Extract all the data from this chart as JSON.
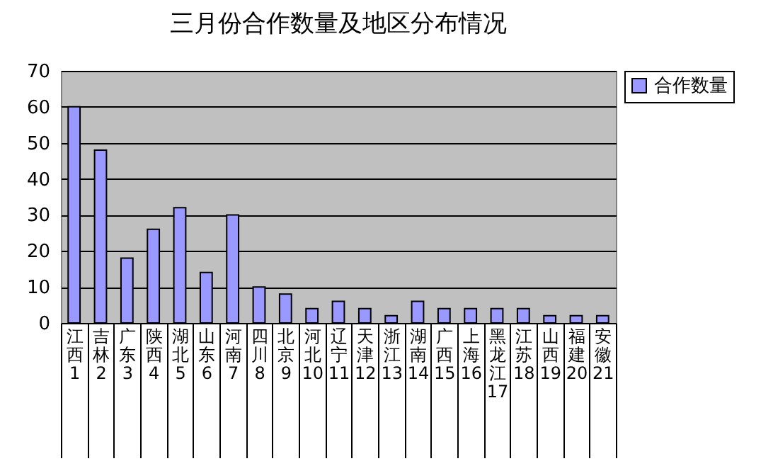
{
  "chart_data": {
    "type": "bar",
    "title": "三月份合作数量及地区分布情况",
    "categories": [
      "江西 1",
      "吉林 2",
      "广东 3",
      "陕西 4",
      "湖北 5",
      "山东 6",
      "河南 7",
      "四川 8",
      "北京 9",
      "河北 10",
      "辽宁 11",
      "天津 12",
      "浙江 13",
      "湖南 14",
      "广西 15",
      "上海 16",
      "黑龙江 17",
      "江苏 18",
      "山西 19",
      "福建 20",
      "安徽 21"
    ],
    "series": [
      {
        "name": "合作数量",
        "color": "#9999ff",
        "values": [
          60,
          48,
          18,
          26,
          32,
          14,
          30,
          10,
          8,
          4,
          6,
          4,
          2,
          6,
          4,
          4,
          4,
          4,
          2,
          2,
          2
        ]
      }
    ],
    "ylim": [
      0,
      70
    ],
    "yticks": [
      0,
      10,
      20,
      30,
      40,
      50,
      60,
      70
    ],
    "grid": "y",
    "legend": "right"
  }
}
